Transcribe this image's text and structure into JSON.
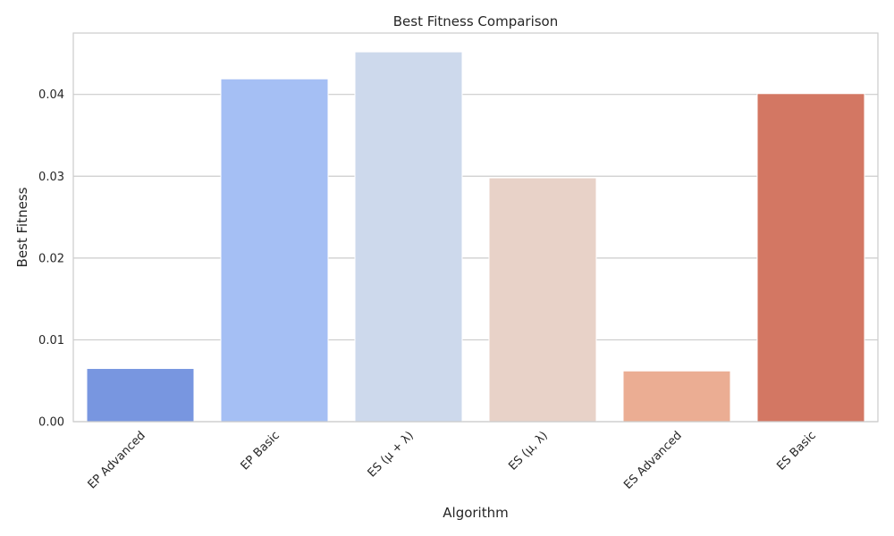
{
  "chart_data": {
    "type": "bar",
    "title": "Best Fitness Comparison",
    "xlabel": "Algorithm",
    "ylabel": "Best Fitness",
    "categories": [
      "EP Advanced",
      "EP Basic",
      "ES (μ + λ)",
      "ES (μ, λ)",
      "ES Advanced",
      "ES Basic"
    ],
    "values": [
      0.0065,
      0.0419,
      0.0452,
      0.0298,
      0.0062,
      0.0401
    ],
    "colors": [
      "#7896e0",
      "#a5bff4",
      "#cdd9ec",
      "#e8d2c8",
      "#ebad93",
      "#d37763"
    ],
    "ylim": [
      0,
      0.0475
    ],
    "yticks": [
      0,
      0.01,
      0.02,
      0.03,
      0.04
    ],
    "ytick_labels": [
      "0.00",
      "0.01",
      "0.02",
      "0.03",
      "0.04"
    ],
    "grid": true,
    "legend": "none"
  }
}
